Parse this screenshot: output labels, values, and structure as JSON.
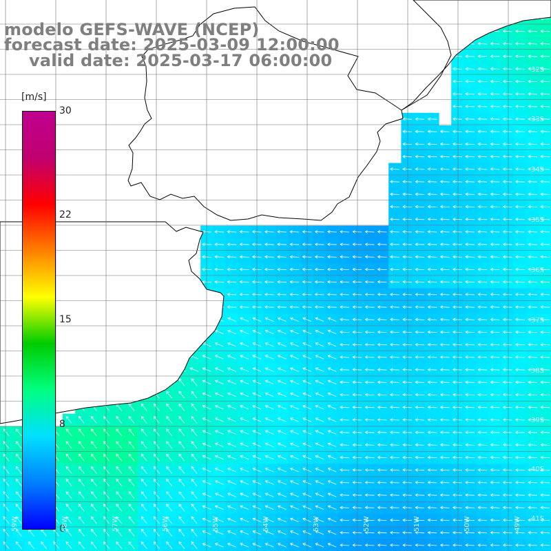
{
  "title": {
    "line1": "modelo GEFS-WAVE (NCEP)",
    "line2": "forecast date: 2025-03-09 12:00:00",
    "line3": "valid date: 2025-03-17 06:00:00"
  },
  "colorbar": {
    "unit": "[m/s]",
    "min": 0,
    "max": 30,
    "ticks": [
      {
        "value": 30,
        "label": "30"
      },
      {
        "value": 22,
        "label": "22"
      },
      {
        "value": 15,
        "label": "15"
      },
      {
        "value": 8,
        "label": "8"
      },
      {
        "value": 0,
        "label": "0"
      }
    ],
    "stops": [
      "#0000ff",
      "#0080ff",
      "#00e0ff",
      "#00ff80",
      "#00cc00",
      "#ffff00",
      "#ff8000",
      "#ff0000",
      "#c0006f",
      "#c0008f"
    ]
  },
  "lat_labels": [
    "32S",
    "33S",
    "34S",
    "35S",
    "36S",
    "37S",
    "38S",
    "39S",
    "40S",
    "41S"
  ],
  "lon_labels": [
    "59W",
    "58W",
    "57W",
    "56W",
    "55W",
    "54W",
    "53W",
    "52W",
    "51W",
    "50W",
    "49W"
  ],
  "colors": {
    "land": "#ffffff",
    "coast": "#000000",
    "grid": "#6e6e6e",
    "arrow": "#ffffff",
    "title": "#7f7f7f"
  }
}
